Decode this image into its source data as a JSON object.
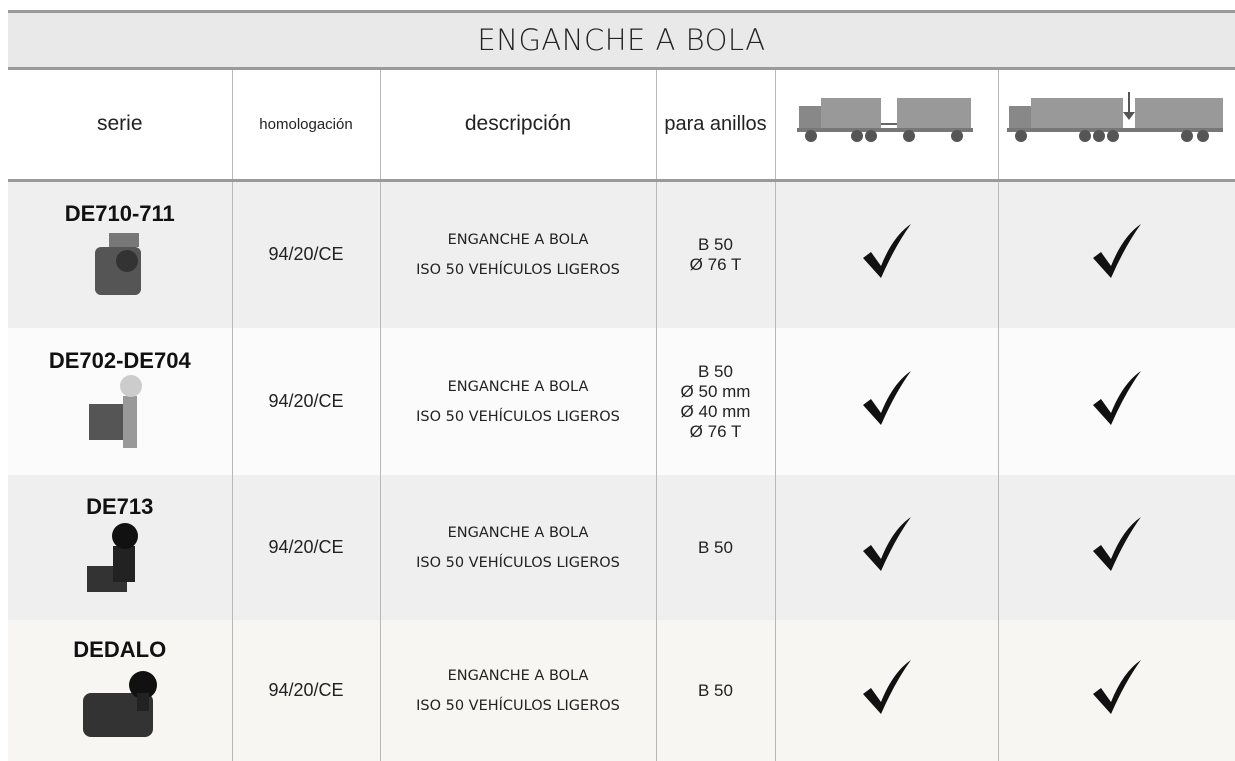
{
  "header": {
    "title": "ENGANCHE A BOLA"
  },
  "table": {
    "columns": [
      "serie",
      "homologación",
      "descripción",
      "para anillos"
    ],
    "rows": [
      {
        "serie": "DE710-711",
        "homologacion": "94/20/CE",
        "descripcion": [
          "ENGANCHE A BOLA",
          "ISO 50 VEHÍCULOS LIGEROS"
        ],
        "anillos": [
          "B 50",
          "Ø 76 T"
        ]
      },
      {
        "serie": "DE702-DE704",
        "homologacion": "94/20/CE",
        "descripcion": [
          "ENGANCHE A BOLA",
          "ISO 50 VEHÍCULOS LIGEROS"
        ],
        "anillos": [
          "B 50",
          "Ø 50 mm",
          "Ø 40 mm",
          "Ø 76 T"
        ]
      },
      {
        "serie": "DE713",
        "homologacion": "94/20/CE",
        "descripcion": [
          "ENGANCHE A BOLA",
          "ISO 50 VEHÍCULOS LIGEROS"
        ],
        "anillos": [
          "B 50"
        ]
      },
      {
        "serie": "DEDALO",
        "homologacion": "94/20/CE",
        "descripcion": [
          "ENGANCHE A BOLA",
          "ISO 50 VEHÍCULOS LIGEROS"
        ],
        "anillos": [
          "B 50"
        ]
      }
    ]
  }
}
